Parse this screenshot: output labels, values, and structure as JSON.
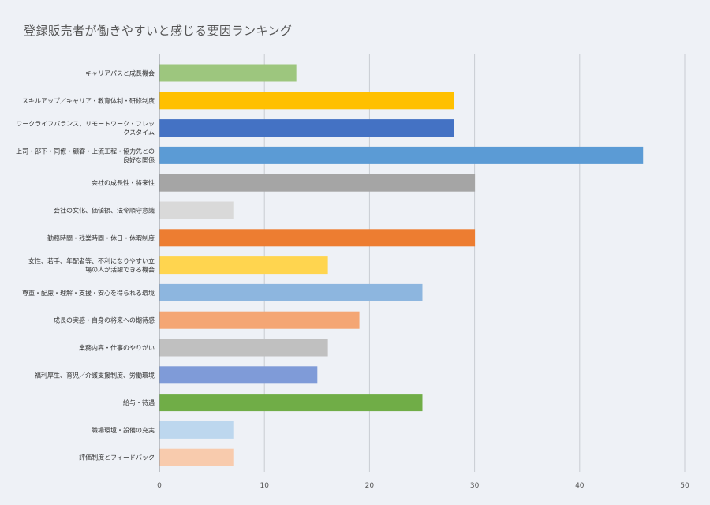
{
  "chart_data": {
    "type": "bar",
    "orientation": "horizontal",
    "title": "登録販売者が働きやすいと感じる要因ランキング",
    "xlabel": "",
    "ylabel": "",
    "xlim": [
      0,
      50
    ],
    "xticks": [
      0,
      10,
      20,
      30,
      40,
      50
    ],
    "grid": true,
    "legend": "none",
    "categories": [
      [
        "キャリアパスと成長機会"
      ],
      [
        "スキルアップ／キャリア・教育体制・研修制度"
      ],
      [
        "ワークライフバランス、リモートワーク・フレッ",
        "クスタイム"
      ],
      [
        "上司・部下・同僚・顧客・上流工程・協力先との",
        "良好な関係"
      ],
      [
        "会社の成長性・将来性"
      ],
      [
        "会社の文化、価値観、法令順守意識"
      ],
      [
        "勤務時間・残業時間・休日・休暇制度"
      ],
      [
        "女性、若手、年配者等、不利になりやすい立",
        "場の人が活躍できる機会"
      ],
      [
        "尊重・配慮・理解・支援・安心を得られる環境"
      ],
      [
        "成長の実感・自身の将来への期待感"
      ],
      [
        "業務内容・仕事のやりがい"
      ],
      [
        "福利厚生、育児／介護支援制度、労働環境"
      ],
      [
        "給与・待遇"
      ],
      [
        "職場環境・設備の充実"
      ],
      [
        "評価制度とフィードバック"
      ]
    ],
    "values": [
      13,
      28,
      28,
      46,
      30,
      7,
      30,
      16,
      25,
      19,
      16,
      15,
      25,
      7,
      7
    ],
    "colors": [
      "#9dc67e",
      "#ffc000",
      "#4472c4",
      "#5b9bd5",
      "#a5a5a5",
      "#d9d9d9",
      "#ed7d31",
      "#ffd54f",
      "#8db6df",
      "#f4a674",
      "#c0c0c0",
      "#7f9bd8",
      "#70ad47",
      "#bdd7ee",
      "#f8cbad"
    ]
  }
}
